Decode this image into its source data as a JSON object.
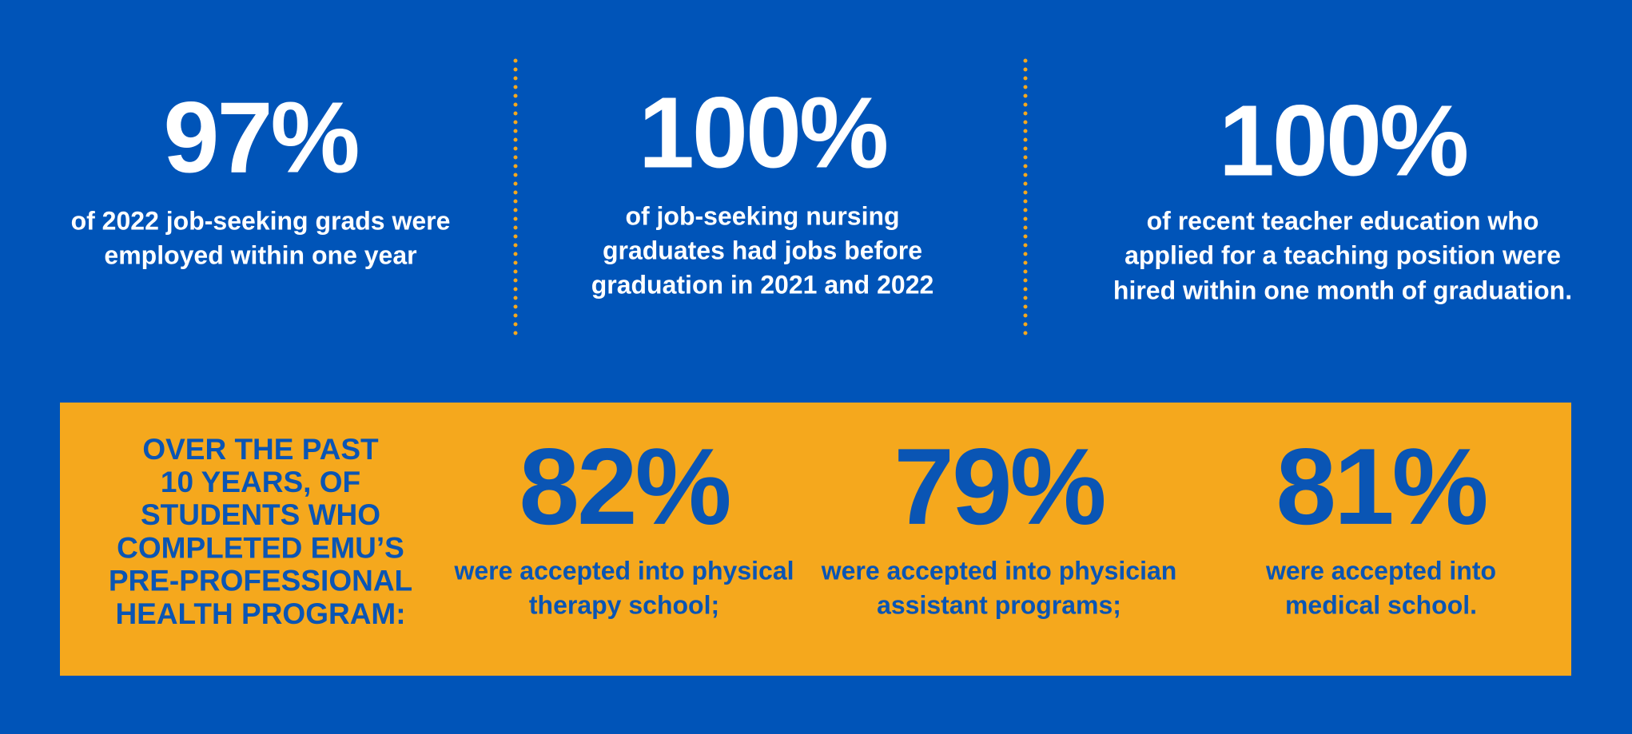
{
  "top_stats": [
    {
      "value": "97%",
      "lines": [
        "of 2022 job-seeking grads were",
        "employed within one year"
      ]
    },
    {
      "value": "100%",
      "lines": [
        "of job-seeking nursing",
        "graduates had jobs before",
        "graduation in 2021 and 2022"
      ]
    },
    {
      "value": "100%",
      "lines": [
        "of recent teacher education who",
        "applied for a teaching position were",
        "hired within one month of graduation."
      ]
    }
  ],
  "highlight": {
    "heading": [
      "OVER THE PAST",
      "10 YEARS, OF",
      "STUDENTS WHO",
      "COMPLETED EMU’S",
      "PRE-PROFESSIONAL",
      "HEALTH PROGRAM:"
    ],
    "stats": [
      {
        "value": "82%",
        "lines": [
          "were accepted into physical",
          "therapy school;"
        ]
      },
      {
        "value": "79%",
        "lines": [
          "were accepted into physician",
          "assistant programs;"
        ]
      },
      {
        "value": "81%",
        "lines": [
          "were accepted into",
          "medical school."
        ]
      }
    ]
  }
}
